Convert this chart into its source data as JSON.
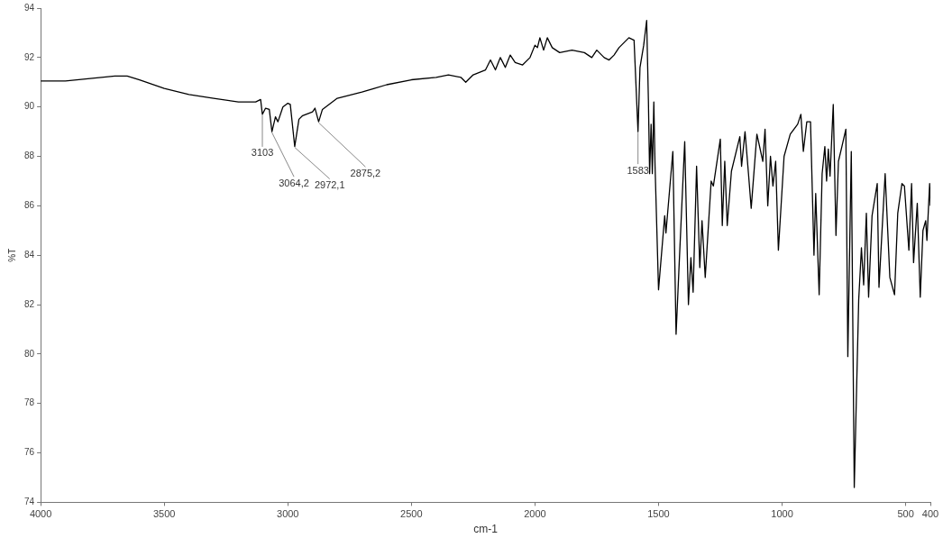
{
  "chart_data": {
    "type": "line",
    "xlabel": "cm-1",
    "ylabel": "%T",
    "xlim": [
      4000,
      400
    ],
    "xticks": [
      4000,
      3500,
      3000,
      2500,
      2000,
      1500,
      1000,
      500,
      400
    ],
    "ylim": [
      74,
      94
    ],
    "yticks": [
      74,
      76,
      78,
      80,
      82,
      84,
      86,
      88,
      90,
      92,
      94
    ],
    "grid": false,
    "legend": false,
    "marker": "none",
    "line_style": "solid",
    "annotations": [
      {
        "text": "3103",
        "x": 3103,
        "y": 89.7
      },
      {
        "text": "3064,2",
        "x": 3064.2,
        "y": 89.0
      },
      {
        "text": "2972,1",
        "x": 2972.1,
        "y": 88.4
      },
      {
        "text": "2875,2",
        "x": 2875.2,
        "y": 89.4
      },
      {
        "text": "1583",
        "x": 1583,
        "y": 89.0
      }
    ],
    "series": [
      {
        "color": "#000000",
        "x": [
          4000,
          3900,
          3800,
          3700,
          3650,
          3600,
          3500,
          3400,
          3300,
          3200,
          3130,
          3110,
          3103,
          3090,
          3075,
          3064.2,
          3050,
          3040,
          3020,
          3000,
          2990,
          2972.1,
          2955,
          2940,
          2900,
          2890,
          2875.2,
          2860,
          2800,
          2700,
          2650,
          2600,
          2500,
          2400,
          2350,
          2300,
          2280,
          2250,
          2200,
          2180,
          2160,
          2140,
          2120,
          2100,
          2080,
          2050,
          2020,
          2000,
          1990,
          1980,
          1965,
          1950,
          1930,
          1900,
          1850,
          1800,
          1770,
          1750,
          1720,
          1700,
          1680,
          1660,
          1620,
          1599,
          1583,
          1575,
          1560,
          1548,
          1541,
          1536,
          1530,
          1525,
          1519,
          1514,
          1500,
          1475,
          1470,
          1442,
          1429,
          1418,
          1394,
          1379,
          1369,
          1360,
          1346,
          1333,
          1324,
          1311,
          1287,
          1278,
          1250,
          1242,
          1232,
          1222,
          1205,
          1171,
          1164,
          1150,
          1136,
          1125,
          1102,
          1078,
          1069,
          1058,
          1047,
          1037,
          1026,
          1015,
          992,
          967,
          937,
          924,
          914,
          900,
          885,
          871,
          864,
          850,
          838,
          827,
          820,
          813,
          806,
          793,
          782,
          772,
          758,
          742,
          734,
          720,
          708,
          690,
          679,
          670,
          659,
          650,
          636,
          615,
          608,
          583,
          564,
          545,
          532,
          515,
          505,
          487,
          476,
          468,
          453,
          441,
          430,
          419,
          414,
          403,
          400
        ],
        "values": [
          91.05,
          91.05,
          91.15,
          91.25,
          91.25,
          91.1,
          90.75,
          90.5,
          90.35,
          90.2,
          90.2,
          90.3,
          89.7,
          89.95,
          89.9,
          89.0,
          89.6,
          89.4,
          90.0,
          90.15,
          90.1,
          88.4,
          89.5,
          89.65,
          89.8,
          89.95,
          89.4,
          89.9,
          90.35,
          90.6,
          90.75,
          90.9,
          91.1,
          91.2,
          91.3,
          91.2,
          91.0,
          91.3,
          91.5,
          91.9,
          91.5,
          92.0,
          91.6,
          92.1,
          91.8,
          91.7,
          92.0,
          92.5,
          92.4,
          92.8,
          92.3,
          92.8,
          92.4,
          92.2,
          92.3,
          92.2,
          92.0,
          92.3,
          92.0,
          91.9,
          92.1,
          92.4,
          92.8,
          92.7,
          89.0,
          91.6,
          92.5,
          93.5,
          90.3,
          87.3,
          89.3,
          87.3,
          90.2,
          87.6,
          82.6,
          85.6,
          84.9,
          88.2,
          80.8,
          83.3,
          88.6,
          82.0,
          83.9,
          82.5,
          87.6,
          83.5,
          85.4,
          83.1,
          87.0,
          86.8,
          88.7,
          85.2,
          87.8,
          85.2,
          87.4,
          88.8,
          87.6,
          89.0,
          87.3,
          85.9,
          88.9,
          87.8,
          89.1,
          86.0,
          88.0,
          86.8,
          87.8,
          84.2,
          88.0,
          88.9,
          89.3,
          89.7,
          88.2,
          89.4,
          89.4,
          84.0,
          86.5,
          82.4,
          87.3,
          88.4,
          87.0,
          88.3,
          87.2,
          90.1,
          84.8,
          87.8,
          88.4,
          89.1,
          79.9,
          88.2,
          74.6,
          82.2,
          84.3,
          82.8,
          85.7,
          82.3,
          85.6,
          86.9,
          82.7,
          87.3,
          83.1,
          82.4,
          85.7,
          86.9,
          86.8,
          84.2,
          86.9,
          83.7,
          86.1,
          82.3,
          85.0,
          85.4,
          84.6,
          86.9,
          86.0
        ]
      }
    ]
  }
}
